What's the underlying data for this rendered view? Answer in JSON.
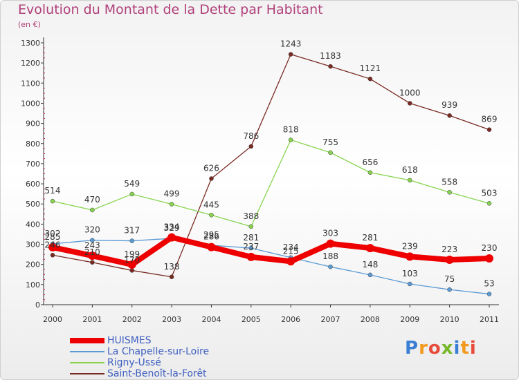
{
  "title": "Evolution du Montant de la Dette par Habitant",
  "unit": "(en €)",
  "brand": "Proxiti",
  "colors": {
    "title": "#b0407a",
    "legend_text": "#4060c0",
    "axis": "#333333",
    "tick_marks": "#cc2244"
  },
  "chart_data": {
    "type": "line",
    "x": [
      "2000",
      "2001",
      "2002",
      "2003",
      "2004",
      "2005",
      "2006",
      "2007",
      "2008",
      "2009",
      "2010",
      "2011"
    ],
    "y_ticks": [
      0,
      100,
      200,
      300,
      400,
      500,
      600,
      700,
      800,
      900,
      1000,
      1100,
      1200,
      1300
    ],
    "ylim": [
      0,
      1300
    ],
    "grid": false,
    "legend_position": "bottom-left",
    "series": [
      {
        "name": "HUISMES",
        "color": "#ee0000",
        "values": [
          285,
          243,
          199,
          334,
          286,
          237,
          215,
          303,
          281,
          239,
          223,
          230
        ],
        "labels": [
          "285",
          "243",
          "199",
          "334",
          "286",
          "237",
          "215",
          "303",
          "281",
          "239",
          "223",
          "230"
        ]
      },
      {
        "name": "La Chapelle-sur-Loire",
        "color": "#5b9bd5",
        "values": [
          302,
          320,
          317,
          329,
          295,
          281,
          234,
          188,
          148,
          103,
          75,
          53
        ],
        "labels": [
          "302",
          "320",
          "317",
          "329",
          "295",
          "281",
          "234",
          "188",
          "148",
          "103",
          "75",
          "53"
        ]
      },
      {
        "name": "Rigny-Ussé",
        "color": "#88d44e",
        "values": [
          514,
          470,
          549,
          499,
          445,
          388,
          818,
          755,
          656,
          618,
          558,
          503
        ],
        "labels": [
          "514",
          "470",
          "549",
          "499",
          "445",
          "388",
          "818",
          "755",
          "656",
          "618",
          "558",
          "503"
        ]
      },
      {
        "name": "Saint-Benoît-la-Forêt",
        "color": "#7a2a22",
        "values": [
          246,
          210,
          170,
          138,
          626,
          786,
          1243,
          1183,
          1121,
          1000,
          939,
          869
        ],
        "labels": [
          "246",
          "210",
          "170",
          "138",
          "626",
          "786",
          "1243",
          "1183",
          "1121",
          "1000",
          "939",
          "869"
        ]
      }
    ]
  }
}
